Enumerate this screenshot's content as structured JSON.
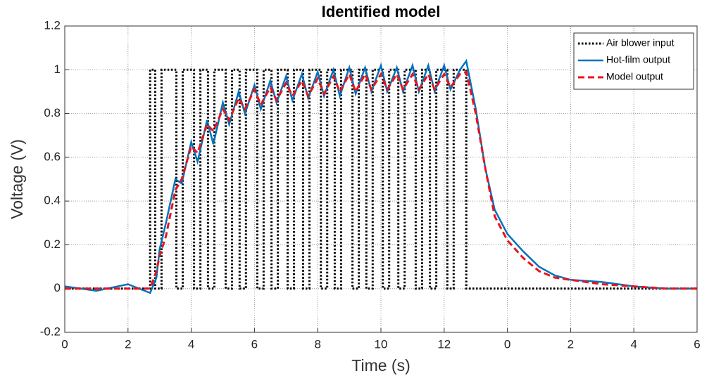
{
  "chart_data": {
    "type": "line",
    "title": "Identified model",
    "xlabel": "Time (s)",
    "ylabel": "Voltage (V)",
    "xlim": [
      0,
      20
    ],
    "ylim": [
      -0.2,
      1.2
    ],
    "xticks": [
      0,
      2,
      4,
      6,
      8,
      10,
      12,
      {
        "value": 14,
        "label": "0"
      },
      {
        "value": 16,
        "label": "2"
      },
      {
        "value": 18,
        "label": "4"
      },
      {
        "value": 20,
        "label": "6"
      }
    ],
    "yticks": [
      -0.2,
      0,
      0.2,
      0.4,
      0.6,
      0.8,
      1,
      1.2
    ],
    "grid": true,
    "legend": "upper right",
    "series": [
      {
        "name": "Air blower input",
        "color": "#000000",
        "style": "dotted",
        "x": [
          0,
          2.7,
          2.7,
          2.86,
          2.86,
          3.06,
          3.06,
          3.53,
          3.53,
          3.73,
          3.73,
          4.09,
          4.09,
          4.29,
          4.29,
          4.53,
          4.53,
          4.73,
          4.73,
          5.09,
          5.09,
          5.29,
          5.29,
          5.53,
          5.53,
          5.73,
          5.73,
          6.09,
          6.09,
          6.29,
          6.29,
          6.54,
          6.54,
          6.74,
          6.74,
          7.05,
          7.05,
          7.25,
          7.25,
          7.54,
          7.54,
          7.74,
          7.74,
          8.1,
          8.1,
          8.3,
          8.3,
          8.54,
          8.54,
          8.74,
          8.74,
          9.1,
          9.1,
          9.3,
          9.3,
          9.54,
          9.54,
          9.74,
          9.74,
          10.06,
          10.06,
          10.26,
          10.26,
          10.55,
          10.55,
          10.75,
          10.75,
          11.1,
          11.1,
          11.3,
          11.3,
          11.55,
          11.55,
          11.75,
          11.75,
          12.1,
          12.1,
          12.3,
          12.3,
          12.7,
          12.7,
          20
        ],
        "values": [
          0,
          0,
          1,
          1,
          0,
          0,
          1,
          1,
          0,
          0,
          1,
          1,
          0,
          0,
          1,
          1,
          0,
          0,
          1,
          1,
          0,
          0,
          1,
          1,
          0,
          0,
          1,
          1,
          0,
          0,
          1,
          1,
          0,
          0,
          1,
          1,
          0,
          0,
          1,
          1,
          0,
          0,
          1,
          1,
          0,
          0,
          1,
          1,
          0,
          0,
          1,
          1,
          0,
          0,
          1,
          1,
          0,
          0,
          1,
          1,
          0,
          0,
          1,
          1,
          0,
          0,
          1,
          1,
          0,
          0,
          1,
          1,
          0,
          0,
          1,
          1,
          0,
          0,
          1,
          1,
          0,
          0
        ]
      },
      {
        "name": "Hot-film output",
        "color": "#0072bd",
        "style": "solid",
        "x": [
          0,
          1,
          2,
          2.7,
          2.9,
          3.0,
          3.2,
          3.5,
          3.7,
          4.0,
          4.2,
          4.5,
          4.7,
          5.0,
          5.2,
          5.5,
          5.7,
          6.0,
          6.2,
          6.5,
          6.7,
          7,
          7.2,
          7.5,
          7.7,
          8,
          8.2,
          8.5,
          8.7,
          9,
          9.2,
          9.5,
          9.7,
          10,
          10.2,
          10.5,
          10.7,
          11,
          11.2,
          11.5,
          11.7,
          12,
          12.2,
          12.5,
          12.7,
          13,
          13.3,
          13.6,
          14,
          14.5,
          15,
          15.5,
          16,
          17,
          18,
          19,
          20
        ],
        "values": [
          0.01,
          -0.01,
          0.02,
          -0.02,
          0.05,
          0.18,
          0.3,
          0.5,
          0.48,
          0.67,
          0.58,
          0.77,
          0.66,
          0.85,
          0.75,
          0.9,
          0.8,
          0.93,
          0.82,
          0.95,
          0.85,
          0.97,
          0.86,
          0.98,
          0.87,
          0.99,
          0.88,
          1.0,
          0.88,
          1.01,
          0.89,
          1.01,
          0.9,
          1.02,
          0.9,
          1.01,
          0.9,
          1.02,
          0.9,
          1.02,
          0.9,
          1.02,
          0.91,
          1.0,
          1.04,
          0.82,
          0.55,
          0.36,
          0.25,
          0.17,
          0.1,
          0.06,
          0.04,
          0.03,
          0.01,
          0.0,
          0.0
        ]
      },
      {
        "name": "Model output",
        "color": "#e8141c",
        "style": "dashed",
        "x": [
          0,
          1,
          2,
          2.7,
          2.9,
          3.0,
          3.2,
          3.5,
          3.7,
          4.0,
          4.2,
          4.5,
          4.7,
          5.0,
          5.2,
          5.5,
          5.7,
          6.0,
          6.2,
          6.5,
          6.7,
          7,
          7.2,
          7.5,
          7.7,
          8,
          8.2,
          8.5,
          8.7,
          9,
          9.2,
          9.5,
          9.7,
          10,
          10.2,
          10.5,
          10.7,
          11,
          11.2,
          11.5,
          11.7,
          12,
          12.2,
          12.5,
          12.7,
          13,
          13.3,
          13.6,
          14,
          14.5,
          15,
          15.5,
          16,
          17,
          18,
          19,
          20
        ],
        "values": [
          0,
          0,
          0,
          0,
          0.08,
          0.15,
          0.24,
          0.45,
          0.5,
          0.65,
          0.62,
          0.75,
          0.72,
          0.82,
          0.77,
          0.87,
          0.82,
          0.91,
          0.84,
          0.92,
          0.86,
          0.94,
          0.88,
          0.95,
          0.88,
          0.96,
          0.89,
          0.97,
          0.9,
          0.98,
          0.9,
          0.98,
          0.91,
          0.98,
          0.91,
          0.98,
          0.91,
          0.98,
          0.91,
          0.98,
          0.91,
          0.98,
          0.92,
          0.98,
          0.99,
          0.8,
          0.55,
          0.33,
          0.22,
          0.14,
          0.08,
          0.05,
          0.04,
          0.02,
          0.01,
          0,
          0
        ]
      }
    ]
  }
}
